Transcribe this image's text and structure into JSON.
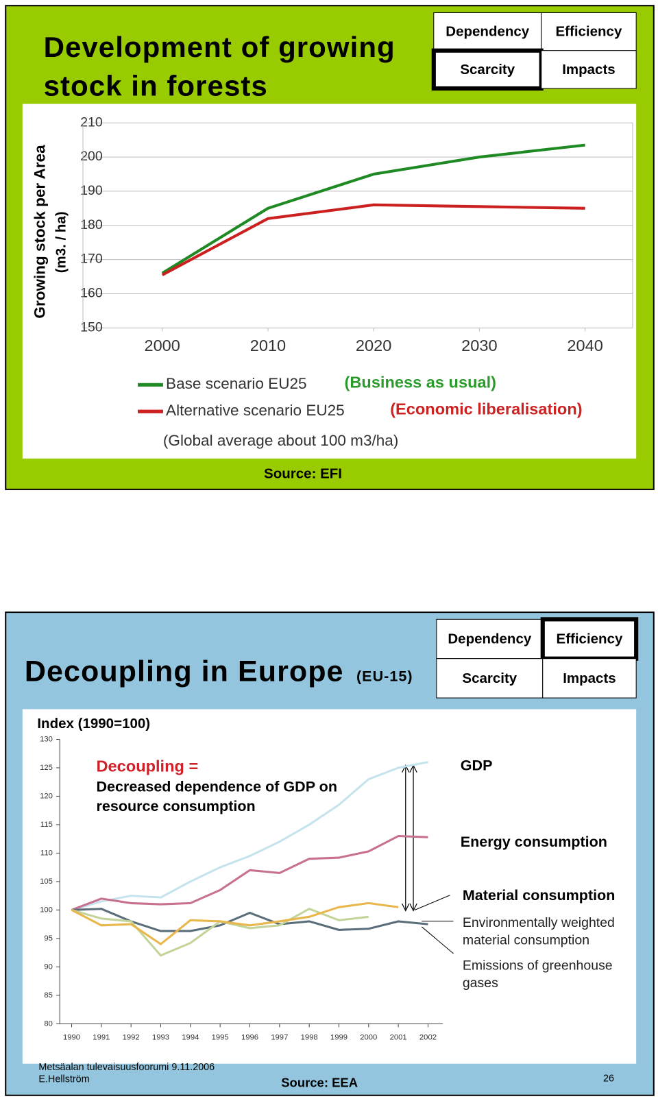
{
  "slides": [
    {
      "title": "Development of growing stock in forests",
      "nav": [
        "Dependency",
        "Efficiency",
        "Scarcity",
        "Impacts"
      ],
      "active": 2,
      "source": "Source: EFI"
    },
    {
      "title": "Decoupling in Europe",
      "subtitle": "(EU-15)",
      "nav": [
        "Dependency",
        "Efficiency",
        "Scarcity",
        "Impacts"
      ],
      "active": 1,
      "source": "Source: EEA",
      "footer": [
        "Metsäalan tulevaisuusfoorumi 9.11.2006",
        "E.Hellström"
      ],
      "page": 26
    }
  ],
  "chart_data": [
    {
      "type": "line",
      "ylabel": [
        "Growing stock per Area",
        "(m3. / ha)"
      ],
      "x": [
        2000,
        2010,
        2020,
        2030,
        2040
      ],
      "xlim": [
        1992.5,
        2044.5
      ],
      "xticks": [
        2000,
        2010,
        2020,
        2030,
        2040
      ],
      "ylim": [
        150,
        210
      ],
      "yticks": [
        150,
        160,
        170,
        180,
        190,
        200,
        210
      ],
      "grid": true,
      "series": [
        {
          "name": "Base scenario EU25",
          "color": "#1f8a23",
          "values": [
            166,
            185,
            195,
            200,
            203.5
          ]
        },
        {
          "name": "Alternative scenario EU25",
          "color": "#cc1f1f",
          "values": [
            165.5,
            182,
            186,
            185.5,
            185
          ]
        }
      ],
      "annotations": [
        {
          "text": "(Business as usual)",
          "color": "#2a9a2a"
        },
        {
          "text": "(Economic liberalisation)",
          "color": "#cc2222"
        }
      ],
      "note": "(Global average about 100 m3/ha)"
    },
    {
      "type": "line",
      "ylabel": "Index (1990=100)",
      "x": [
        1990,
        1991,
        1992,
        1993,
        1994,
        1995,
        1996,
        1997,
        1998,
        1999,
        2000,
        2001,
        2002
      ],
      "xlim": [
        1989.6,
        2002.5
      ],
      "xticks": [
        1990,
        1991,
        1992,
        1993,
        1994,
        1995,
        1996,
        1997,
        1998,
        1999,
        2000,
        2001,
        2002
      ],
      "ylim": [
        80,
        130
      ],
      "yticks": [
        80,
        85,
        90,
        95,
        100,
        105,
        110,
        115,
        120,
        125,
        130
      ],
      "grid": false,
      "series": [
        {
          "name": "GDP",
          "color": "#c5e3ec",
          "values": [
            100,
            101.5,
            102.5,
            102.2,
            105,
            107.5,
            109.5,
            112,
            115,
            118.5,
            123,
            125,
            126
          ]
        },
        {
          "name": "Energy consumption",
          "color": "#c8708f",
          "values": [
            100,
            102,
            101.2,
            101,
            101.2,
            103.5,
            107,
            106.5,
            109,
            109.2,
            110.3,
            113,
            112.8
          ]
        },
        {
          "name": "Material consumption",
          "color": "#5a6e7a",
          "values": [
            100,
            100.2,
            98,
            96.3,
            96.3,
            97.3,
            99.5,
            97.5,
            98,
            96.5,
            96.7,
            98,
            97.5
          ]
        },
        {
          "name": "Environmentally weighted material consumption",
          "color": "#c3d49a",
          "values": [
            100,
            98.5,
            98,
            92,
            94.2,
            98,
            96.8,
            97.3,
            100.2,
            98.2,
            98.8,
            null,
            null
          ]
        },
        {
          "name": "Emissions of greenhouse gases",
          "color": "#e8b64a",
          "values": [
            100,
            97.3,
            97.5,
            94,
            98.2,
            98,
            97.3,
            98,
            98.8,
            100.5,
            101.2,
            100.5,
            null
          ]
        }
      ],
      "annotation_title": "Decoupling =",
      "annotation": "Decreased dependence of GDP on resource consumption"
    }
  ]
}
